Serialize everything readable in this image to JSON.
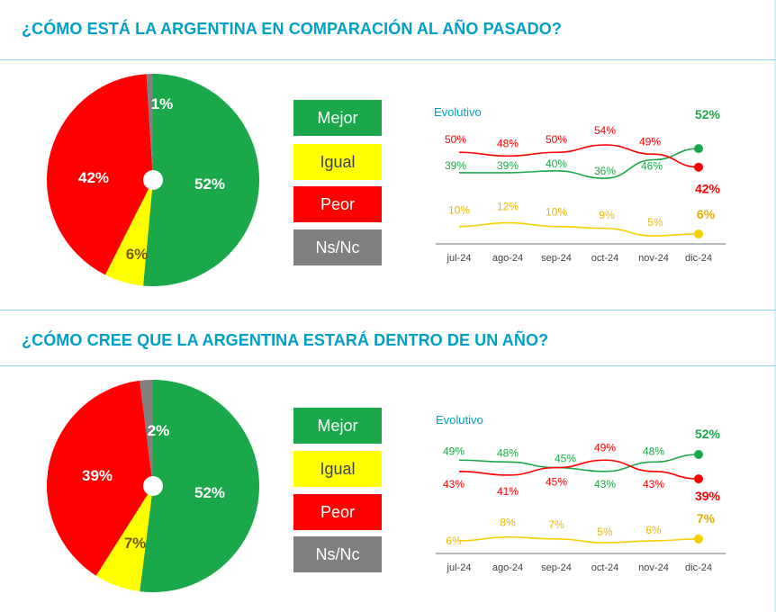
{
  "colors": {
    "mejor": "#1BA84A",
    "igual": "#FFFF00",
    "peor": "#FF0000",
    "nsnc": "#808080",
    "title": "#00A0C6",
    "line_igual": "#F5D000",
    "label_igual": "#E8B800",
    "label_igual_last": "#E0B000"
  },
  "legend": {
    "mejor": "Mejor",
    "igual": "Igual",
    "peor": "Peor",
    "nsnc": "Ns/Nc"
  },
  "sections": [
    {
      "title": "¿CÓMO ESTÁ LA ARGENTINA EN COMPARACIÓN AL AÑO PASADO?",
      "evolutivo_label": "Evolutivo"
    },
    {
      "title": "¿CÓMO CREE QUE LA ARGENTINA ESTARÁ DENTRO DE UN AÑO?",
      "evolutivo_label": "Evolutivo"
    }
  ],
  "chart_data": [
    {
      "type": "pie",
      "categories": [
        "Mejor",
        "Igual",
        "Peor",
        "Ns/Nc"
      ],
      "values": [
        52,
        6,
        42,
        1
      ],
      "labels": [
        "52%",
        "6%",
        "42%",
        "1%"
      ]
    },
    {
      "type": "line",
      "title": "Evolutivo",
      "categories": [
        "jul-24",
        "ago-24",
        "sep-24",
        "oct-24",
        "nov-24",
        "dic-24"
      ],
      "series": [
        {
          "key": "mejor",
          "values": [
            39,
            39,
            40,
            36,
            46,
            52
          ],
          "labels": [
            "39%",
            "39%",
            "40%",
            "36%",
            "46%",
            "52%"
          ]
        },
        {
          "key": "peor",
          "values": [
            50,
            48,
            50,
            54,
            49,
            42
          ],
          "labels": [
            "50%",
            "48%",
            "50%",
            "54%",
            "49%",
            "42%"
          ]
        },
        {
          "key": "igual",
          "values": [
            10,
            12,
            10,
            9,
            5,
            6
          ],
          "labels": [
            "10%",
            "12%",
            "10%",
            "9%",
            "5%",
            "6%"
          ]
        }
      ]
    },
    {
      "type": "pie",
      "categories": [
        "Mejor",
        "Igual",
        "Peor",
        "Ns/Nc"
      ],
      "values": [
        52,
        7,
        39,
        2
      ],
      "labels": [
        "52%",
        "7%",
        "39%",
        "2%"
      ]
    },
    {
      "type": "line",
      "title": "Evolutivo",
      "categories": [
        "jul-24",
        "ago-24",
        "sep-24",
        "oct-24",
        "nov-24",
        "dic-24"
      ],
      "series": [
        {
          "key": "mejor",
          "values": [
            49,
            48,
            45,
            43,
            48,
            52
          ],
          "labels": [
            "49%",
            "48%",
            "45%",
            "43%",
            "48%",
            "52%"
          ]
        },
        {
          "key": "peor",
          "values": [
            43,
            41,
            45,
            49,
            43,
            39
          ],
          "labels": [
            "43%",
            "41%",
            "45%",
            "49%",
            "43%",
            "39%"
          ]
        },
        {
          "key": "igual",
          "values": [
            6,
            8,
            7,
            5,
            6,
            7
          ],
          "labels": [
            "6%",
            "8%",
            "7%",
            "5%",
            "6%",
            "7%"
          ]
        }
      ]
    }
  ]
}
